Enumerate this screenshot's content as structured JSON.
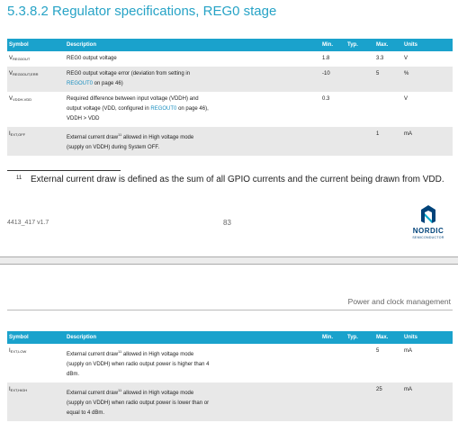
{
  "section_title": "5.3.8.2 Regulator specifications, REG0 stage",
  "table_headers": {
    "symbol": "Symbol",
    "description": "Description",
    "min": "Min.",
    "typ": "Typ.",
    "max": "Max.",
    "units": "Units"
  },
  "table1_rows": [
    {
      "sym_main": "V",
      "sym_sub": "REG0OUT",
      "desc1": "REG0 output voltage",
      "min": "1.8",
      "typ": "",
      "max": "3.3",
      "units": "V"
    },
    {
      "sym_main": "V",
      "sym_sub": "REG0OUT,ERR",
      "desc1": "REG0 output voltage error (deviation from setting in",
      "desc2_link": "REGOUT0",
      "desc2_rest": " on page 46)",
      "min": "-10",
      "typ": "",
      "max": "5",
      "units": "%"
    },
    {
      "sym_main": "V",
      "sym_sub": "VDDH-VDD",
      "desc1": "Required difference between input voltage (VDDH) and",
      "desc2_pre": "output voltage (VDD, configured in ",
      "desc2_link": "REGOUT0",
      "desc2_rest": " on page 46),",
      "desc3": "VDDH > VDD",
      "min": "0.3",
      "typ": "",
      "max": "",
      "units": "V"
    },
    {
      "sym_main": "I",
      "sym_sub": "EXT,OFF",
      "desc1_pre": "External current draw",
      "desc1_sup": "11",
      "desc1_rest": " allowed in High voltage mode",
      "desc2": "(supply on VDDH) during System OFF.",
      "min": "",
      "typ": "",
      "max": "1",
      "units": "mA"
    }
  ],
  "footnote": {
    "number": "11",
    "text": "External current draw is defined as the sum of all GPIO currents and the current being drawn from VDD."
  },
  "footer": {
    "doc_id": "4413_417 v1.7",
    "page_number": "83",
    "logo_text": "NORDIC",
    "logo_sub": "SEMICONDUCTOR"
  },
  "next_page_header": "Power and clock management",
  "table2_rows": [
    {
      "sym_main": "I",
      "sym_sub": "EXT,LOW",
      "desc1_pre": "External current draw",
      "desc1_sup": "11",
      "desc1_rest": " allowed in High voltage mode",
      "desc2": "(supply on VDDH) when radio output power is higher than 4",
      "desc3": "dBm.",
      "min": "",
      "typ": "",
      "max": "5",
      "units": "mA"
    },
    {
      "sym_main": "I",
      "sym_sub": "EXT,HIGH",
      "desc1_pre": "External current draw",
      "desc1_sup": "11",
      "desc1_rest": " allowed in High voltage mode",
      "desc2": "(supply on VDDH) when radio output power is lower than or",
      "desc3": "equal to 4 dBm.",
      "min": "",
      "typ": "",
      "max": "25",
      "units": "mA"
    }
  ],
  "colors": {
    "accent": "#1aa2cc",
    "title": "#27a3c6",
    "link": "#1a8fc0",
    "row_shade": "#e8e8e8",
    "logo": "#00437a"
  }
}
